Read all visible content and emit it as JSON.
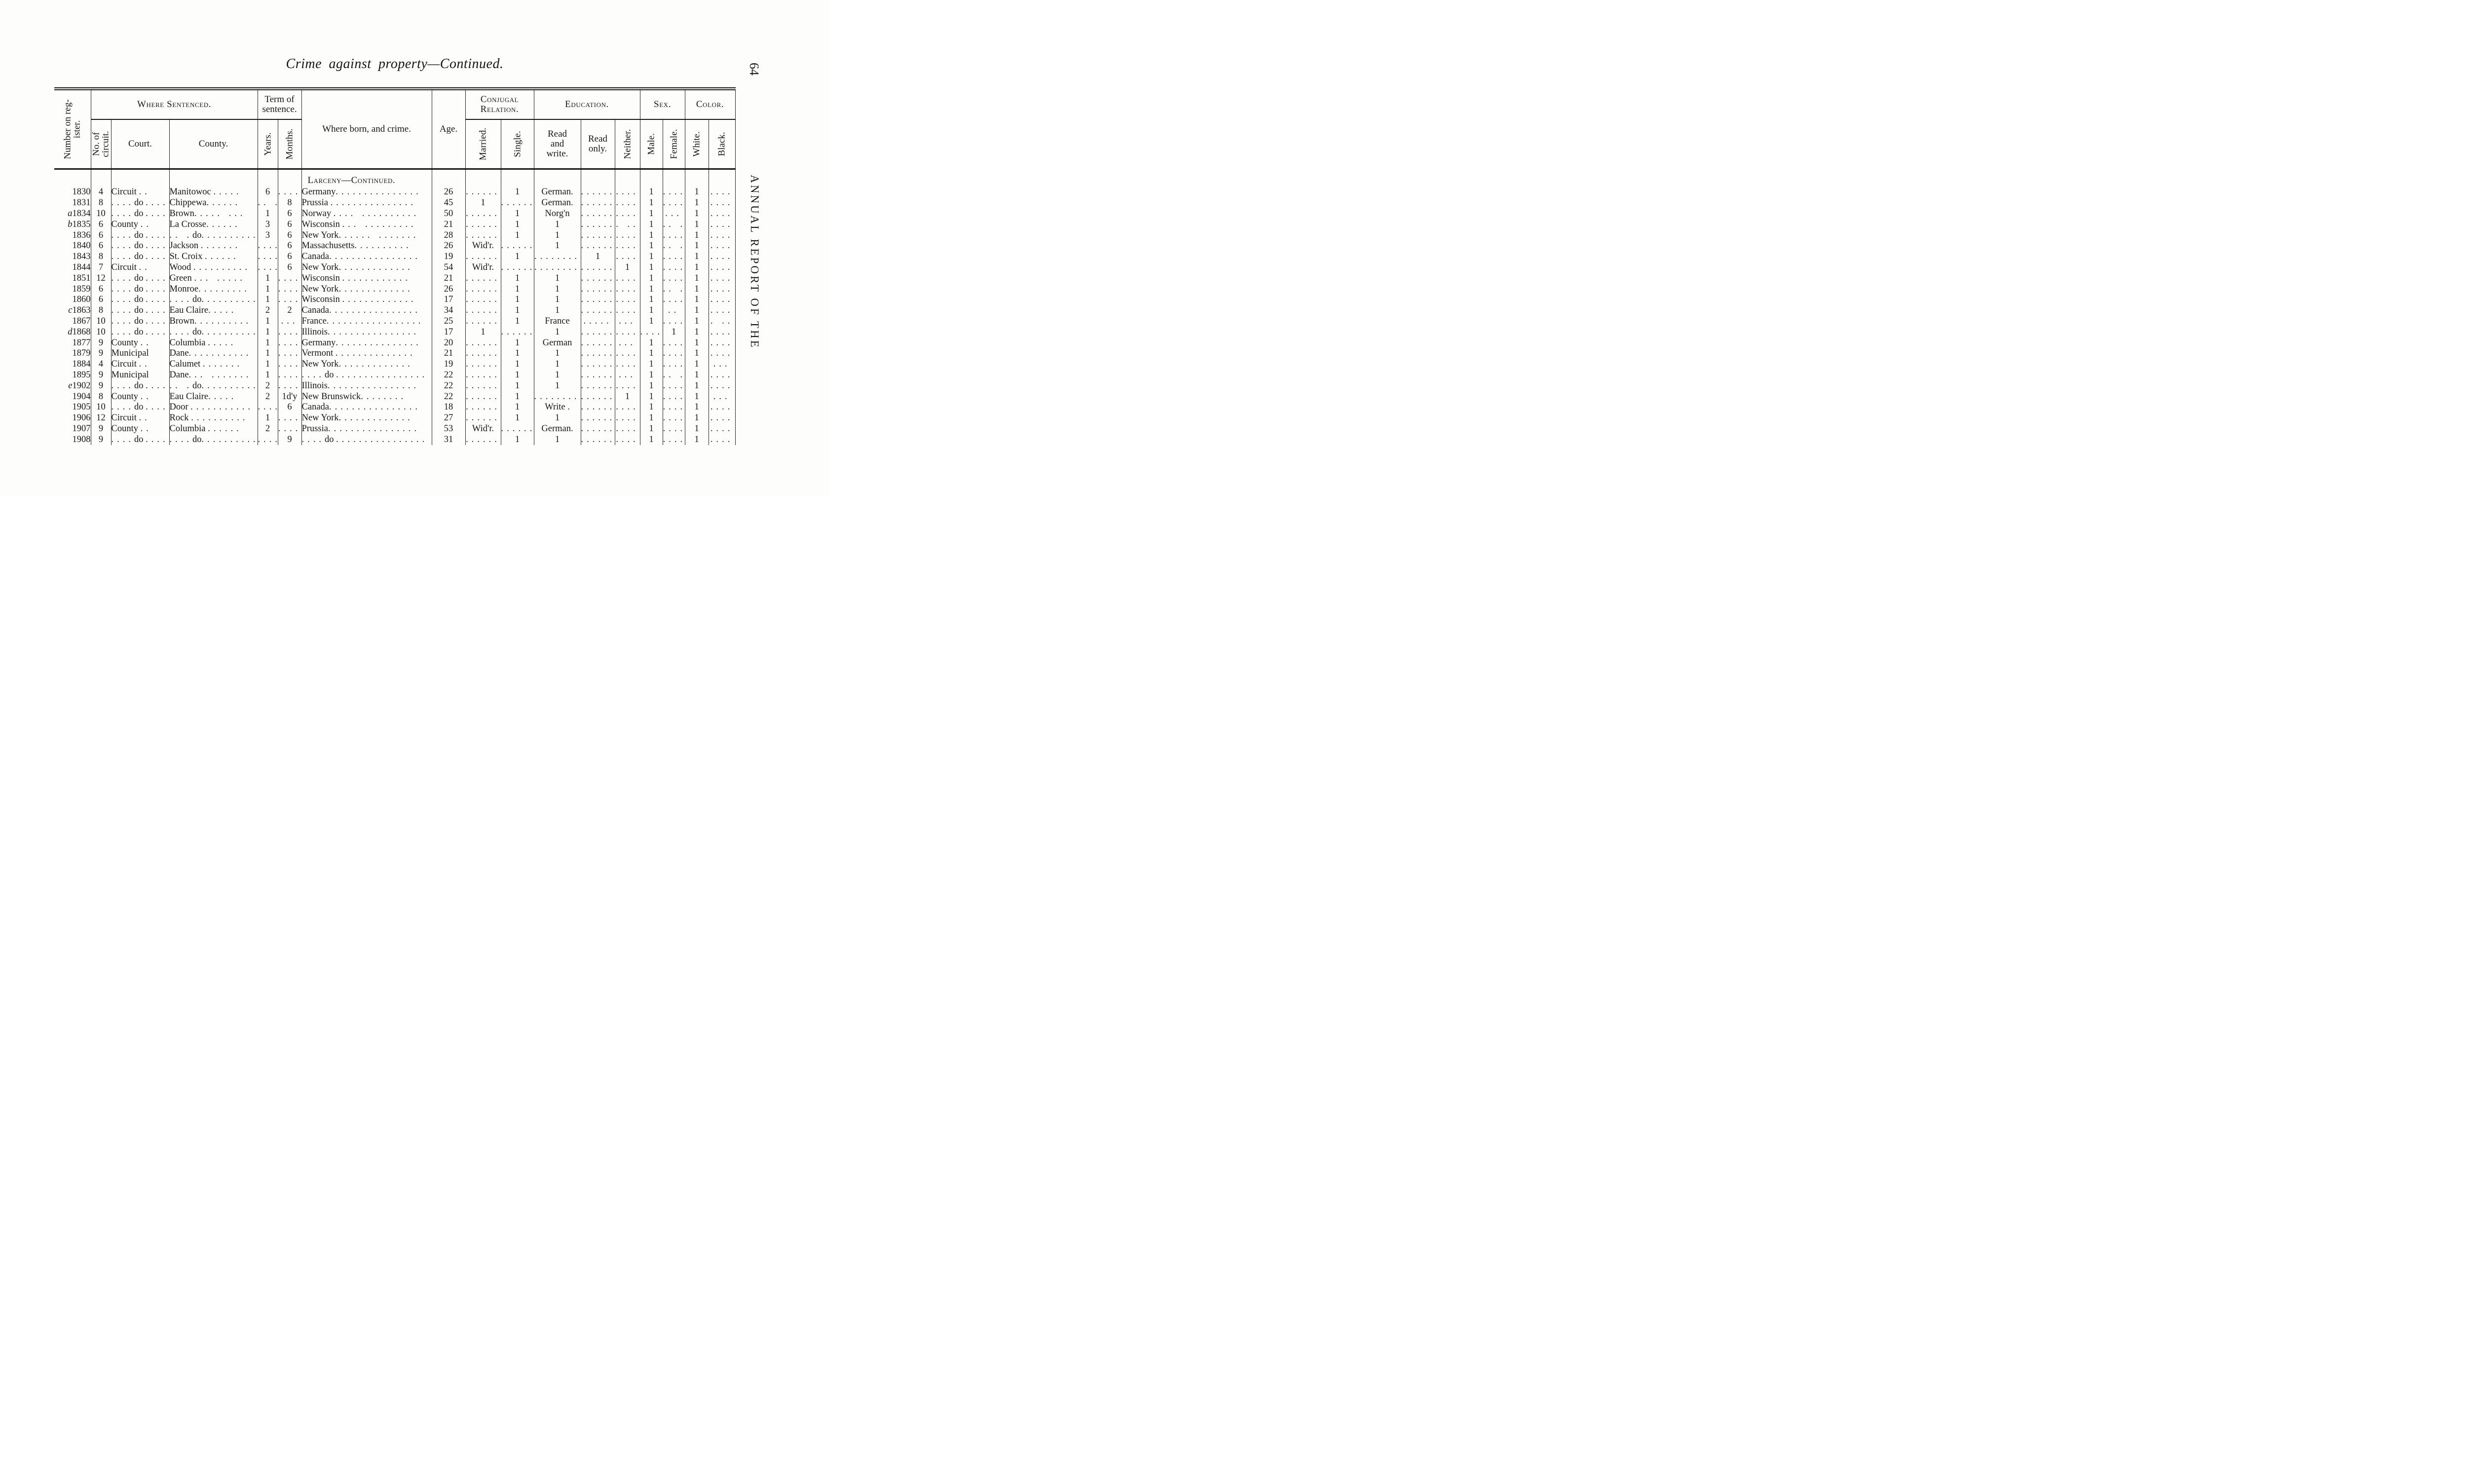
{
  "page": {
    "title": "Crime against property—Continued.",
    "page_number": "64",
    "margin_text": "ANNUAL REPORT OF THE"
  },
  "table": {
    "groups": {
      "register": "Number on reg-\nister.",
      "where_sentenced": "Where Sentenced.",
      "term_of_sentence": "Term of\nsentence.",
      "where_born": "Where born, and crime.",
      "age": "Age.",
      "conjugal": "Conjugal\nRelation.",
      "education": "Education.",
      "sex": "Sex.",
      "color": "Color."
    },
    "subheaders": {
      "circuit": "No. of\ncircuit.",
      "court": "Court.",
      "county": "County.",
      "years": "Years.",
      "months": "Months.",
      "married": "Married.",
      "single": "Single.",
      "read_write": "Read\nand\nwrite.",
      "read_only": "Read\nonly.",
      "neither": "Neither.",
      "male": "Male.",
      "female": "Female.",
      "white": "White.",
      "black": "Black."
    },
    "section_header": "Larceny—Continued.",
    "columns": [
      "register",
      "circuit",
      "court",
      "county",
      "years",
      "months",
      "born",
      "age",
      "married",
      "single",
      "read_write",
      "read_only",
      "neither",
      "male",
      "female",
      "white",
      "black"
    ],
    "rows": [
      [
        "1830",
        "4",
        "Circuit ..",
        "Manitowoc .....",
        "6",
        "....",
        "Germany...............",
        "26",
        "......",
        "1",
        "German.",
        ".......",
        "....",
        "1",
        "....",
        "1",
        "...."
      ],
      [
        "1831",
        "8",
        "....do ....",
        "Chippewa......",
        ".. .",
        "8",
        "Prussia ...............",
        "45",
        "1",
        "......",
        "German.",
        ".......",
        "....",
        "1",
        "....",
        "1",
        "...."
      ],
      [
        "a1834",
        "10",
        "....do ....",
        "Brown..... ...",
        "1",
        "6",
        "Norway .... ..........",
        "50",
        "......",
        "1",
        "Norg'n",
        ".......",
        "....",
        "1",
        "...",
        "1",
        "...."
      ],
      [
        "b1835",
        "6",
        "County ..",
        "La Crosse......",
        "3",
        "6",
        "Wisconsin ... .........",
        "21",
        "......",
        "1",
        "1",
        ".......",
        ". ..",
        "1",
        ".. .",
        "1",
        "...."
      ],
      [
        "1836",
        "6",
        "....do ....",
        ".. .do..........",
        "3",
        "6",
        "New York...... .......",
        "28",
        "......",
        "1",
        "1",
        ".......",
        "....",
        "1",
        "....",
        "1",
        "...."
      ],
      [
        "1840",
        "6",
        "....do ....",
        "Jackson .......",
        "....",
        "6",
        "Massachusetts..........",
        "26",
        "Wid'r.",
        "......",
        "1",
        ".......",
        "....",
        "1",
        ".. .",
        "1",
        "...."
      ],
      [
        "1843",
        "8",
        "....do ....",
        "St. Croix ......",
        "....",
        "6",
        "Canada................",
        "19",
        "......",
        "1",
        "........",
        "1",
        "....",
        "1",
        "....",
        "1",
        "...."
      ],
      [
        "1844",
        "7",
        "Circuit ..",
        "Wood ..........",
        "....",
        "6",
        "New York.............",
        "54",
        "Wid'r.",
        "......",
        "........",
        "......",
        "1",
        "1",
        "....",
        "1",
        "...."
      ],
      [
        "1851",
        "12",
        "....do ....",
        "Green ... .....",
        "1",
        "....",
        "Wisconsin ............",
        "21",
        "......",
        "1",
        "1",
        ".......",
        "....",
        "1",
        "....",
        "1",
        "...."
      ],
      [
        "1859",
        "6",
        "....do ....",
        "Monroe.........",
        "1",
        "....",
        "New York.............",
        "26",
        "......",
        "1",
        "1",
        ".......",
        "....",
        "1",
        ".. .",
        "1",
        "...."
      ],
      [
        "1860",
        "6",
        "....do ....",
        "....do..........",
        "1",
        "....",
        "Wisconsin .............",
        "17",
        "......",
        "1",
        "1",
        ".......",
        "....",
        "1",
        "....",
        "1",
        "...."
      ],
      [
        "c1863",
        "8",
        "....do ....",
        "Eau Claire.....",
        "2",
        "2",
        "Canada................",
        "34",
        "......",
        "1",
        "1",
        ".......",
        "....",
        "1",
        "..",
        "1",
        "...."
      ],
      [
        "1867",
        "10",
        "....do ....",
        "Brown..........",
        "1",
        "...",
        "France.................",
        "25",
        "......",
        "1",
        "France",
        ".....",
        "...",
        "1",
        "....",
        "1",
        ". .."
      ],
      [
        "d1868",
        "10",
        "....do ....",
        "....do..........",
        "1",
        "....",
        "Illinois................",
        "17",
        "1",
        "......",
        "1",
        ".......",
        "....",
        "....",
        "1",
        "1",
        "...."
      ],
      [
        "1877",
        "9",
        "County ..",
        "Columbia .....",
        "1",
        "....",
        "Germany...............",
        "20",
        "......",
        "1",
        "German",
        ".......",
        "...",
        "1",
        "....",
        "1",
        "...."
      ],
      [
        "1879",
        "9",
        "Municipal",
        "Dane...........",
        "1",
        "....",
        "Vermont ..............",
        "21",
        "......",
        "1",
        "1",
        ".......",
        "....",
        "1",
        "....",
        "1",
        "...."
      ],
      [
        "1884",
        "4",
        "Circuit ..",
        "Calumet .......",
        "1",
        "....",
        "New York.............",
        "19",
        "......",
        "1",
        "1",
        ".......",
        "....",
        "1",
        "....",
        "1",
        "..."
      ],
      [
        "1895",
        "9",
        "Municipal",
        "Dane... .......",
        "1",
        "....",
        "....do ................",
        "22",
        "......",
        "1",
        "1",
        ".......",
        "...",
        "1",
        ".. .",
        "1",
        "...."
      ],
      [
        "e1902",
        "9",
        "....do ....",
        ".. .do..........",
        "2",
        "....",
        "Illinois................",
        "22",
        "......",
        "1",
        "1",
        ".......",
        "....",
        "1",
        "....",
        "1",
        "...."
      ],
      [
        "1904",
        "8",
        "County ..",
        "Eau Claire.....",
        "2",
        "1d'y",
        "New Brunswick........",
        "22",
        "......",
        "1",
        "..........",
        "......",
        "1",
        "1",
        "....",
        "1",
        "..."
      ],
      [
        "1905",
        "10",
        "....do ....",
        "Door ...........",
        "....",
        "6",
        "Canada................",
        "18",
        "......",
        "1",
        "Write .",
        ".......",
        "....",
        "1",
        "....",
        "1",
        "...."
      ],
      [
        "1906",
        "12",
        "Circuit ..",
        "Rock ..........",
        "1",
        "....",
        "New York.............",
        "27",
        "......",
        "1",
        "1",
        ".......",
        "....",
        "1",
        "....",
        "1",
        "...."
      ],
      [
        "1907",
        "9",
        "County ..",
        "Columbia ......",
        "2",
        "....",
        "Prussia................",
        "53",
        "Wid'r.",
        "......",
        "German.",
        ".......",
        "....",
        "1",
        "....",
        "1",
        "...."
      ],
      [
        "1908",
        "9",
        "....do ....",
        "....do..........",
        "....",
        "9",
        "....do ................",
        "31",
        "......",
        "1",
        "1",
        ".......",
        "....",
        "1",
        "....",
        "1",
        "...."
      ]
    ]
  }
}
